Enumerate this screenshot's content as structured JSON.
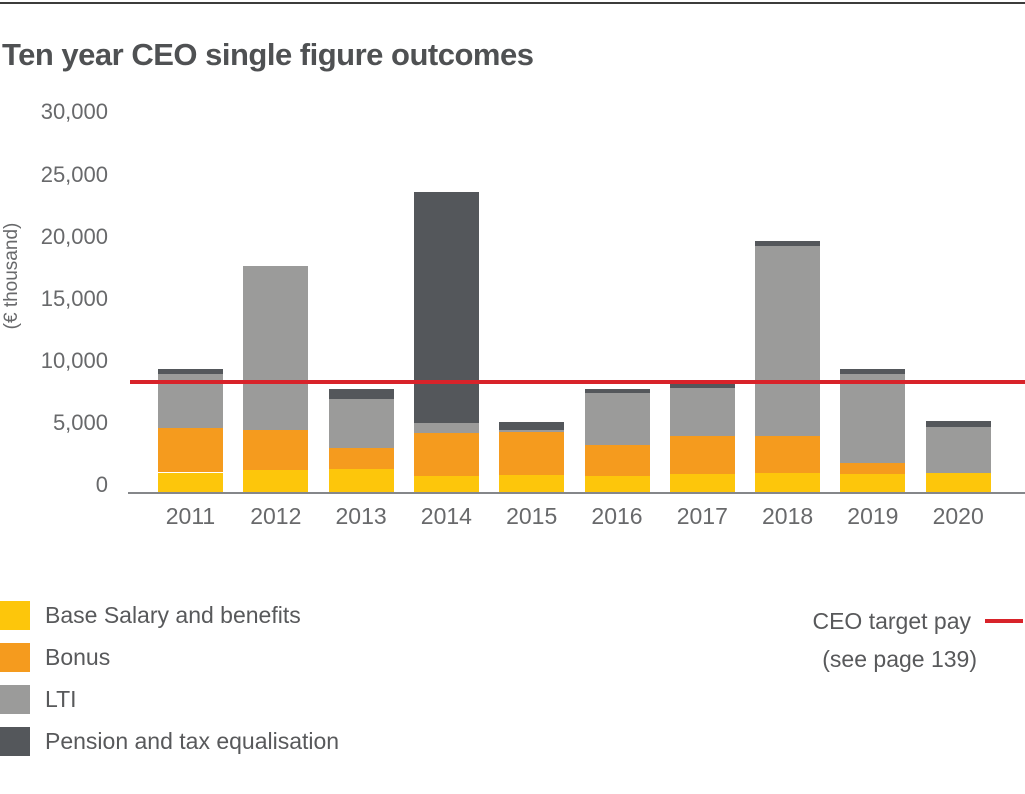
{
  "title": "Ten year CEO single figure outcomes",
  "chart_data": {
    "type": "bar",
    "subtype": "stacked",
    "title": "Ten year CEO single figure outcomes",
    "xlabel": "",
    "ylabel": "(€ thousand)",
    "ylim": [
      0,
      30000
    ],
    "grid": false,
    "legend_position": "bottom-left",
    "y_ticks": [
      0,
      5000,
      10000,
      15000,
      20000,
      25000,
      30000
    ],
    "y_tick_labels": [
      "0",
      "5,000",
      "10,000",
      "15,000",
      "20,000",
      "25,000",
      "30,000"
    ],
    "categories": [
      "2011",
      "2012",
      "2013",
      "2014",
      "2015",
      "2016",
      "2017",
      "2018",
      "2019",
      "2020"
    ],
    "series": [
      {
        "name": "Base Salary and benefits",
        "color": "#fdc60b",
        "values": [
          1650,
          1850,
          1900,
          1350,
          1450,
          1350,
          1550,
          1600,
          1500,
          1650
        ]
      },
      {
        "name": "Bonus",
        "color": "#f59b1e",
        "values": [
          3550,
          3200,
          1750,
          3500,
          3450,
          2500,
          3000,
          2950,
          900,
          0
        ]
      },
      {
        "name": "LTI",
        "color": "#9b9b9a",
        "values": [
          4350,
          13250,
          3900,
          800,
          150,
          4200,
          3900,
          15300,
          7150,
          3700
        ]
      },
      {
        "name": "Pension and tax equalisation",
        "color": "#54575b",
        "values": [
          400,
          0,
          800,
          18550,
          650,
          350,
          300,
          400,
          400,
          450
        ]
      }
    ],
    "totals": [
      9950,
      18300,
      8350,
      24200,
      5700,
      8400,
      8750,
      20250,
      9950,
      5800
    ],
    "target_line": {
      "value": 8950,
      "color": "#d8232a",
      "label": "CEO target pay",
      "note": "(see page 139)"
    }
  },
  "target_legend": {
    "line1": "CEO target pay",
    "line2": "(see page 139)"
  }
}
